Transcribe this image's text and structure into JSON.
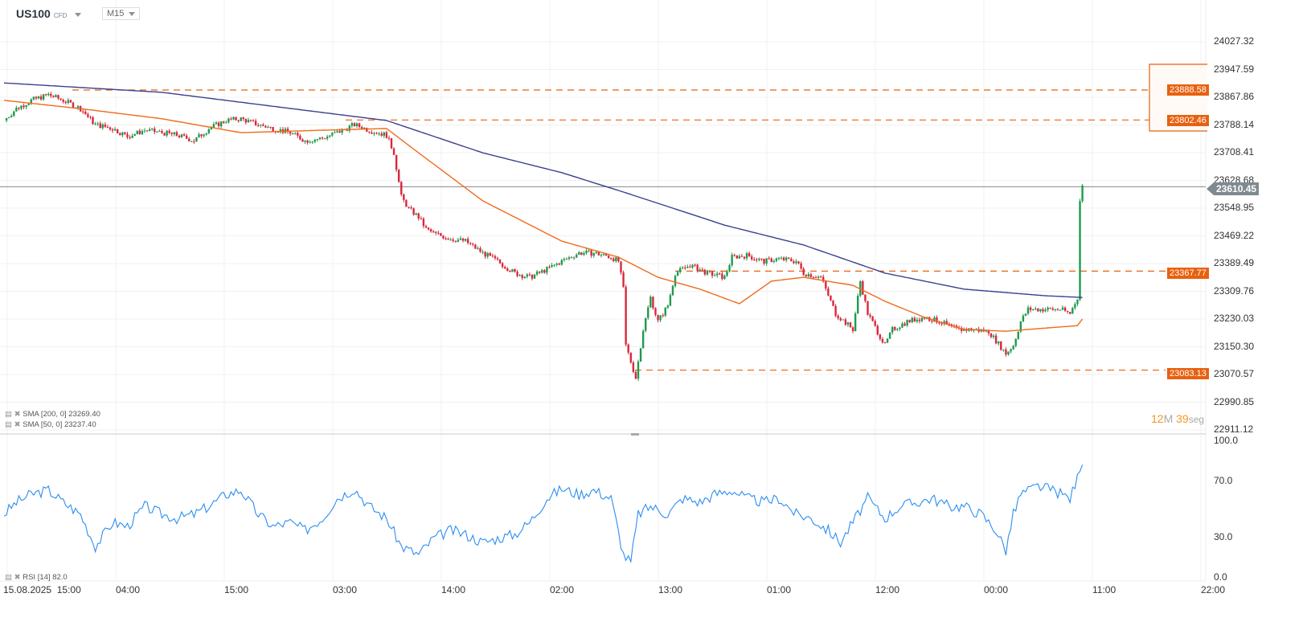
{
  "header": {
    "symbol": "US100",
    "type": "CFD",
    "timeframe": "M15"
  },
  "countdown": {
    "minutes": "12",
    "m": "M",
    "seconds": "39",
    "s": "seg"
  },
  "indicators": {
    "sma200": "SMA [200, 0] 23269.40",
    "sma50": "SMA [50, 0] 23237.40",
    "rsi": "RSI [14] 82.0"
  },
  "current_price": "23610.45",
  "levels": [
    "23888.58",
    "23802.46",
    "23367.77",
    "23083.13"
  ],
  "price_axis": [
    "24027.32",
    "23947.59",
    "23867.86",
    "23788.14",
    "23708.41",
    "23628.68",
    "23548.95",
    "23469.22",
    "23389.49",
    "23309.76",
    "23230.03",
    "23150.30",
    "23070.57",
    "22990.85",
    "22911.12"
  ],
  "rsi_axis": [
    "100.0",
    "70.0",
    "30.0",
    "0.0"
  ],
  "time_axis": [
    "15.08.2025  15:00",
    "04:00",
    "15:00",
    "03:00",
    "14:00",
    "02:00",
    "13:00",
    "01:00",
    "12:00",
    "00:00",
    "11:00",
    "22:00"
  ],
  "colors": {
    "up": "#1f9a4c",
    "down": "#d8283b",
    "sma200": "#3b3f8f",
    "sma50": "#f06a1c",
    "rsi": "#2b8ef0",
    "level": "#e8610f"
  },
  "chart_data": {
    "type": "candlestick",
    "price_range": [
      22911.12,
      24027.32
    ],
    "close_path": [
      [
        0,
        23801
      ],
      [
        5,
        23835
      ],
      [
        11,
        23859
      ],
      [
        18,
        23875
      ],
      [
        24,
        23859
      ],
      [
        31,
        23835
      ],
      [
        37,
        23789
      ],
      [
        44,
        23778
      ],
      [
        50,
        23755
      ],
      [
        57,
        23773
      ],
      [
        64,
        23766
      ],
      [
        70,
        23759
      ],
      [
        77,
        23743
      ],
      [
        83,
        23778
      ],
      [
        90,
        23801
      ],
      [
        96,
        23806
      ],
      [
        103,
        23789
      ],
      [
        109,
        23778
      ],
      [
        116,
        23766
      ],
      [
        122,
        23743
      ],
      [
        129,
        23750
      ],
      [
        135,
        23766
      ],
      [
        142,
        23789
      ],
      [
        148,
        23773
      ],
      [
        155,
        23759
      ],
      [
        158,
        23708
      ],
      [
        161,
        23581
      ],
      [
        164,
        23547
      ],
      [
        168,
        23523
      ],
      [
        171,
        23489
      ],
      [
        174,
        23477
      ],
      [
        181,
        23461
      ],
      [
        187,
        23454
      ],
      [
        194,
        23420
      ],
      [
        200,
        23396
      ],
      [
        207,
        23362
      ],
      [
        213,
        23350
      ],
      [
        220,
        23373
      ],
      [
        226,
        23396
      ],
      [
        233,
        23420
      ],
      [
        239,
        23420
      ],
      [
        246,
        23408
      ],
      [
        249,
        23396
      ],
      [
        251,
        23316
      ],
      [
        252,
        23154
      ],
      [
        256,
        23061
      ],
      [
        259,
        23200
      ],
      [
        262,
        23292
      ],
      [
        265,
        23223
      ],
      [
        269,
        23269
      ],
      [
        272,
        23362
      ],
      [
        278,
        23385
      ],
      [
        285,
        23362
      ],
      [
        292,
        23350
      ],
      [
        295,
        23408
      ],
      [
        301,
        23413
      ],
      [
        308,
        23396
      ],
      [
        314,
        23403
      ],
      [
        321,
        23396
      ],
      [
        324,
        23362
      ],
      [
        331,
        23350
      ],
      [
        337,
        23246
      ],
      [
        344,
        23200
      ],
      [
        347,
        23339
      ],
      [
        350,
        23246
      ],
      [
        357,
        23154
      ],
      [
        360,
        23200
      ],
      [
        366,
        23223
      ],
      [
        373,
        23235
      ],
      [
        379,
        23223
      ],
      [
        386,
        23200
      ],
      [
        392,
        23200
      ],
      [
        399,
        23195
      ],
      [
        406,
        23131
      ],
      [
        409,
        23154
      ],
      [
        412,
        23223
      ],
      [
        415,
        23258
      ],
      [
        422,
        23258
      ],
      [
        428,
        23258
      ],
      [
        432,
        23246
      ],
      [
        435,
        23292
      ],
      [
        436,
        23570
      ],
      [
        437,
        23611
      ]
    ],
    "sma200": [
      [
        0,
        23909
      ],
      [
        64,
        23882
      ],
      [
        129,
        23824
      ],
      [
        155,
        23801
      ],
      [
        194,
        23708
      ],
      [
        226,
        23651
      ],
      [
        252,
        23593
      ],
      [
        292,
        23500
      ],
      [
        324,
        23443
      ],
      [
        357,
        23362
      ],
      [
        389,
        23316
      ],
      [
        422,
        23297
      ],
      [
        437,
        23292
      ]
    ],
    "sma50": [
      [
        0,
        23859
      ],
      [
        31,
        23835
      ],
      [
        64,
        23806
      ],
      [
        96,
        23766
      ],
      [
        129,
        23773
      ],
      [
        155,
        23778
      ],
      [
        168,
        23708
      ],
      [
        194,
        23570
      ],
      [
        226,
        23454
      ],
      [
        249,
        23408
      ],
      [
        265,
        23350
      ],
      [
        282,
        23316
      ],
      [
        298,
        23274
      ],
      [
        311,
        23339
      ],
      [
        324,
        23350
      ],
      [
        344,
        23327
      ],
      [
        357,
        23281
      ],
      [
        373,
        23235
      ],
      [
        389,
        23200
      ],
      [
        406,
        23195
      ],
      [
        422,
        23204
      ],
      [
        435,
        23211
      ],
      [
        437,
        23230
      ]
    ],
    "rsi": [
      [
        0,
        46.6
      ],
      [
        5,
        55.2
      ],
      [
        11,
        60.9
      ],
      [
        18,
        63.8
      ],
      [
        24,
        55.2
      ],
      [
        31,
        46.6
      ],
      [
        37,
        23.6
      ],
      [
        44,
        40.8
      ],
      [
        50,
        37.9
      ],
      [
        57,
        52.3
      ],
      [
        64,
        46.6
      ],
      [
        70,
        43.7
      ],
      [
        77,
        46.6
      ],
      [
        83,
        52.3
      ],
      [
        90,
        60.9
      ],
      [
        96,
        63.8
      ],
      [
        103,
        46.6
      ],
      [
        109,
        37.9
      ],
      [
        116,
        40.8
      ],
      [
        122,
        35.1
      ],
      [
        129,
        43.7
      ],
      [
        135,
        58.0
      ],
      [
        142,
        64.9
      ],
      [
        148,
        52.3
      ],
      [
        155,
        43.7
      ],
      [
        161,
        23.6
      ],
      [
        168,
        17.8
      ],
      [
        174,
        29.3
      ],
      [
        181,
        35.1
      ],
      [
        187,
        32.2
      ],
      [
        194,
        26.4
      ],
      [
        200,
        29.3
      ],
      [
        207,
        32.2
      ],
      [
        213,
        40.8
      ],
      [
        220,
        58.0
      ],
      [
        226,
        64.9
      ],
      [
        233,
        60.9
      ],
      [
        239,
        63.8
      ],
      [
        246,
        58.0
      ],
      [
        251,
        17.8
      ],
      [
        254,
        12.1
      ],
      [
        257,
        46.6
      ],
      [
        262,
        52.3
      ],
      [
        269,
        46.6
      ],
      [
        275,
        58.0
      ],
      [
        282,
        55.2
      ],
      [
        288,
        60.9
      ],
      [
        295,
        63.8
      ],
      [
        301,
        58.0
      ],
      [
        308,
        55.2
      ],
      [
        314,
        58.0
      ],
      [
        321,
        46.6
      ],
      [
        327,
        43.7
      ],
      [
        334,
        35.1
      ],
      [
        339,
        26.4
      ],
      [
        344,
        40.8
      ],
      [
        350,
        58.0
      ],
      [
        357,
        43.7
      ],
      [
        363,
        52.3
      ],
      [
        370,
        55.2
      ],
      [
        376,
        58.0
      ],
      [
        383,
        52.3
      ],
      [
        389,
        52.3
      ],
      [
        396,
        46.6
      ],
      [
        402,
        35.1
      ],
      [
        406,
        20.7
      ],
      [
        409,
        46.6
      ],
      [
        412,
        60.9
      ],
      [
        419,
        66.7
      ],
      [
        425,
        63.8
      ],
      [
        432,
        58.0
      ],
      [
        435,
        72.4
      ],
      [
        437,
        82.0
      ]
    ]
  }
}
